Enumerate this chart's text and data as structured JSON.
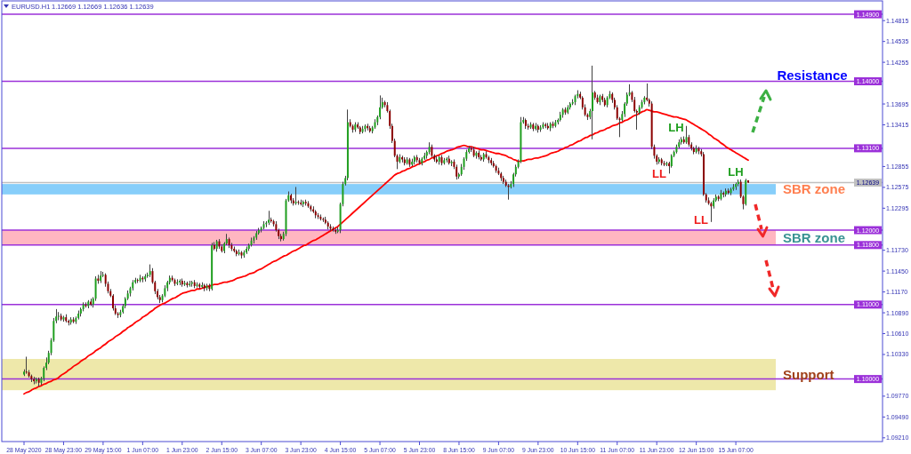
{
  "chart_data": {
    "type": "candlestick",
    "title": "EURUSD.H1",
    "subtitle": "1.12669 1.12669 1.12636 1.12639",
    "categories": [
      "28 May 2020",
      null,
      null,
      null,
      null,
      null,
      null,
      null,
      null,
      null,
      null,
      null,
      null,
      null,
      null,
      null,
      "28 May 23:00",
      null,
      null,
      null,
      null,
      null,
      null,
      null,
      null,
      null,
      null,
      null,
      null,
      null,
      null,
      null,
      "29 May 15:00",
      null,
      null,
      null,
      null,
      null,
      null,
      null,
      null,
      null,
      null,
      null,
      null,
      null,
      null,
      null,
      "1 Jun 07:00",
      null,
      null,
      null,
      null,
      null,
      null,
      null,
      null,
      null,
      null,
      null,
      null,
      null,
      null,
      null,
      "1 Jun 23:00",
      null,
      null,
      null,
      null,
      null,
      null,
      null,
      null,
      null,
      null,
      null,
      null,
      null,
      null,
      null,
      "2 Jun 15:00",
      null,
      null,
      null,
      null,
      null,
      null,
      null,
      null,
      null,
      null,
      null,
      null,
      null,
      null,
      null,
      "3 Jun 07:00",
      null,
      null,
      null,
      null,
      null,
      null,
      null,
      null,
      null,
      null,
      null,
      null,
      null,
      null,
      null,
      "3 Jun 23:00",
      null,
      null,
      null,
      null,
      null,
      null,
      null,
      null,
      null,
      null,
      null,
      null,
      null,
      null,
      null,
      "4 Jun 15:00",
      null,
      null,
      null,
      null,
      null,
      null,
      null,
      null,
      null,
      null,
      null,
      null,
      null,
      null,
      null,
      "5 Jun 07:00",
      null,
      null,
      null,
      null,
      null,
      null,
      null,
      null,
      null,
      null,
      null,
      null,
      null,
      null,
      null,
      "5 Jun 23:00",
      null,
      null,
      null,
      null,
      null,
      null,
      null,
      null,
      null,
      null,
      null,
      null,
      null,
      null,
      null,
      "8 Jun 15:00",
      null,
      null,
      null,
      null,
      null,
      null,
      null,
      null,
      null,
      null,
      null,
      null,
      null,
      null,
      null,
      "9 Jun 07:00",
      null,
      null,
      null,
      null,
      null,
      null,
      null,
      null,
      null,
      null,
      null,
      null,
      null,
      null,
      null,
      "9 Jun 23:00",
      null,
      null,
      null,
      null,
      null,
      null,
      null,
      null,
      null,
      null,
      null,
      null,
      null,
      null,
      null,
      "10 Jun 15:00",
      null,
      null,
      null,
      null,
      null,
      null,
      null,
      null,
      null,
      null,
      null,
      null,
      null,
      null,
      null,
      "11 Jun 07:00",
      null,
      null,
      null,
      null,
      null,
      null,
      null,
      null,
      null,
      null,
      null,
      null,
      null,
      null,
      null,
      "11 Jun 23:00",
      null,
      null,
      null,
      null,
      null,
      null,
      null,
      null,
      null,
      null,
      null,
      null,
      null,
      null,
      null,
      "12 Jun 15:00",
      null,
      null,
      null,
      null,
      null,
      null,
      null,
      null,
      null,
      null,
      null,
      null,
      null,
      null,
      null,
      "15 Jun 07:00",
      null,
      null,
      null,
      null,
      null
    ],
    "ohlc": [
      [
        1.1006,
        1.1013,
        1.1004,
        1.101
      ],
      [
        1.101,
        1.103,
        1.1007,
        1.1009
      ],
      [
        1.1009,
        1.1012,
        1.1002,
        1.1004
      ],
      [
        1.1004,
        1.1006,
        1.0996,
        1.1
      ],
      [
        1.1,
        1.1003,
        1.0993,
        1.0997
      ],
      [
        1.0997,
        1.1002,
        1.0994,
        1.1
      ],
      [
        1.1,
        1.1002,
        1.099,
        1.0995
      ],
      [
        1.0995,
        1.1003,
        1.0992,
        1.1001
      ],
      [
        1.1001,
        1.1017,
        1.0997,
        1.1015
      ],
      [
        1.1015,
        1.1029,
        1.1012,
        1.1022
      ],
      [
        1.1022,
        1.1038,
        1.102,
        1.1035
      ],
      [
        1.1035,
        1.1055,
        1.1032,
        1.1052
      ],
      [
        1.1052,
        1.1082,
        1.105,
        1.1078
      ],
      [
        1.1078,
        1.1094,
        1.1075,
        1.1084
      ],
      [
        1.1084,
        1.109,
        1.1079,
        1.1085
      ],
      [
        1.1085,
        1.1088,
        1.1078,
        1.108
      ],
      [
        1.108,
        1.1085,
        1.1077,
        1.1083
      ],
      [
        1.1083,
        1.1087,
        1.1076,
        1.1078
      ],
      [
        1.1078,
        1.108,
        1.1072,
        1.1076
      ],
      [
        1.1076,
        1.1083,
        1.1073,
        1.108
      ],
      [
        1.108,
        1.1083,
        1.1075,
        1.1077
      ],
      [
        1.1077,
        1.1084,
        1.1074,
        1.1082
      ],
      [
        1.1082,
        1.1092,
        1.108,
        1.1088
      ],
      [
        1.1088,
        1.1096,
        1.1084,
        1.1094
      ],
      [
        1.1094,
        1.1103,
        1.1091,
        1.11
      ],
      [
        1.11,
        1.1103,
        1.1096,
        1.1098
      ],
      [
        1.1098,
        1.1106,
        1.1095,
        1.1104
      ],
      [
        1.1104,
        1.1108,
        1.1098,
        1.11
      ],
      [
        1.11,
        1.111,
        1.1096,
        1.1108
      ],
      [
        1.1108,
        1.1138,
        1.1105,
        1.1135
      ],
      [
        1.1135,
        1.114,
        1.1128,
        1.1132
      ],
      [
        1.1132,
        1.1145,
        1.1129,
        1.1139
      ],
      [
        1.1139,
        1.1144,
        1.1137,
        1.114
      ],
      [
        1.114,
        1.1142,
        1.1124,
        1.1128
      ],
      [
        1.1128,
        1.1131,
        1.1115,
        1.1118
      ],
      [
        1.1118,
        1.1121,
        1.111,
        1.1112
      ],
      [
        1.1112,
        1.1114,
        1.1092,
        1.1095
      ],
      [
        1.1095,
        1.1099,
        1.1086,
        1.1088
      ],
      [
        1.1088,
        1.109,
        1.1082,
        1.1086
      ],
      [
        1.1086,
        1.1093,
        1.1083,
        1.109
      ],
      [
        1.109,
        1.1101,
        1.1088,
        1.1098
      ],
      [
        1.1098,
        1.111,
        1.1095,
        1.1108
      ],
      [
        1.1108,
        1.1119,
        1.1106,
        1.1115
      ],
      [
        1.1115,
        1.1124,
        1.1111,
        1.1122
      ],
      [
        1.1122,
        1.1133,
        1.1119,
        1.113
      ],
      [
        1.113,
        1.1136,
        1.1128,
        1.1133
      ],
      [
        1.1133,
        1.1135,
        1.1129,
        1.1132
      ],
      [
        1.1132,
        1.114,
        1.113,
        1.1136
      ],
      [
        1.1136,
        1.1138,
        1.113,
        1.1134
      ],
      [
        1.1134,
        1.1141,
        1.1131,
        1.1138
      ],
      [
        1.1138,
        1.1143,
        1.1136,
        1.114
      ],
      [
        1.114,
        1.1154,
        1.1137,
        1.1145
      ],
      [
        1.1145,
        1.1149,
        1.1128,
        1.113
      ],
      [
        1.113,
        1.1132,
        1.1114,
        1.1118
      ],
      [
        1.1118,
        1.1121,
        1.1107,
        1.111
      ],
      [
        1.111,
        1.1113,
        1.1102,
        1.1106
      ],
      [
        1.1106,
        1.1114,
        1.1103,
        1.1112
      ],
      [
        1.1112,
        1.1126,
        1.111,
        1.1122
      ],
      [
        1.1122,
        1.1132,
        1.1118,
        1.113
      ],
      [
        1.113,
        1.1139,
        1.1127,
        1.1136
      ],
      [
        1.1136,
        1.1139,
        1.1131,
        1.1133
      ],
      [
        1.1133,
        1.1135,
        1.1125,
        1.1128
      ],
      [
        1.1128,
        1.1134,
        1.1126,
        1.113
      ],
      [
        1.113,
        1.1134,
        1.1126,
        1.1132
      ],
      [
        1.1132,
        1.1135,
        1.1124,
        1.1127
      ],
      [
        1.1127,
        1.1132,
        1.1125,
        1.1129
      ],
      [
        1.1129,
        1.1131,
        1.1123,
        1.1126
      ],
      [
        1.1126,
        1.1132,
        1.1124,
        1.1128
      ],
      [
        1.1128,
        1.1132,
        1.1124,
        1.113
      ],
      [
        1.113,
        1.1133,
        1.1122,
        1.1125
      ],
      [
        1.1125,
        1.113,
        1.1123,
        1.1127
      ],
      [
        1.1127,
        1.1129,
        1.1121,
        1.1124
      ],
      [
        1.1124,
        1.113,
        1.1122,
        1.1126
      ],
      [
        1.1126,
        1.1128,
        1.1118,
        1.1122
      ],
      [
        1.1122,
        1.1128,
        1.1119,
        1.1125
      ],
      [
        1.1125,
        1.1128,
        1.1118,
        1.1121
      ],
      [
        1.1121,
        1.1183,
        1.1119,
        1.118
      ],
      [
        1.118,
        1.1184,
        1.1173,
        1.1175
      ],
      [
        1.1175,
        1.1187,
        1.1171,
        1.1185
      ],
      [
        1.1185,
        1.1188,
        1.1175,
        1.1178
      ],
      [
        1.1178,
        1.1181,
        1.117,
        1.1172
      ],
      [
        1.1172,
        1.1184,
        1.1169,
        1.1182
      ],
      [
        1.1182,
        1.1195,
        1.118,
        1.1188
      ],
      [
        1.1188,
        1.119,
        1.1176,
        1.118
      ],
      [
        1.118,
        1.1183,
        1.1172,
        1.1175
      ],
      [
        1.1175,
        1.1178,
        1.117,
        1.1172
      ],
      [
        1.1172,
        1.1174,
        1.1165,
        1.1168
      ],
      [
        1.1168,
        1.1174,
        1.1166,
        1.117
      ],
      [
        1.117,
        1.1172,
        1.1162,
        1.1166
      ],
      [
        1.1166,
        1.1173,
        1.1163,
        1.117
      ],
      [
        1.117,
        1.1178,
        1.1168,
        1.1175
      ],
      [
        1.1175,
        1.1182,
        1.1172,
        1.118
      ],
      [
        1.118,
        1.119,
        1.1178,
        1.1186
      ],
      [
        1.1186,
        1.1192,
        1.1182,
        1.119
      ],
      [
        1.119,
        1.1199,
        1.1187,
        1.1196
      ],
      [
        1.1196,
        1.1203,
        1.1194,
        1.12
      ],
      [
        1.12,
        1.1205,
        1.1197,
        1.1203
      ],
      [
        1.1203,
        1.1212,
        1.1201,
        1.1208
      ],
      [
        1.1208,
        1.1212,
        1.1204,
        1.121
      ],
      [
        1.121,
        1.1226,
        1.1207,
        1.1214
      ],
      [
        1.1214,
        1.1217,
        1.121,
        1.1212
      ],
      [
        1.1212,
        1.1214,
        1.1205,
        1.1208
      ],
      [
        1.1208,
        1.1212,
        1.1198,
        1.12
      ],
      [
        1.12,
        1.1202,
        1.1188,
        1.1192
      ],
      [
        1.1192,
        1.1195,
        1.1185,
        1.1188
      ],
      [
        1.1188,
        1.1198,
        1.1186,
        1.1195
      ],
      [
        1.1195,
        1.1242,
        1.1192,
        1.124
      ],
      [
        1.124,
        1.1252,
        1.1238,
        1.1247
      ],
      [
        1.1247,
        1.1249,
        1.1236,
        1.124
      ],
      [
        1.124,
        1.1243,
        1.1233,
        1.1236
      ],
      [
        1.1236,
        1.1258,
        1.1234,
        1.1238
      ],
      [
        1.1238,
        1.124,
        1.1234,
        1.1237
      ],
      [
        1.1237,
        1.1241,
        1.1233,
        1.1235
      ],
      [
        1.1235,
        1.124,
        1.1231,
        1.1238
      ],
      [
        1.1238,
        1.1241,
        1.1233,
        1.1236
      ],
      [
        1.1236,
        1.1239,
        1.123,
        1.1232
      ],
      [
        1.1232,
        1.1234,
        1.1225,
        1.1228
      ],
      [
        1.1228,
        1.1232,
        1.1223,
        1.1225
      ],
      [
        1.1225,
        1.1227,
        1.1216,
        1.122
      ],
      [
        1.122,
        1.1223,
        1.1215,
        1.1218
      ],
      [
        1.1218,
        1.1221,
        1.1213,
        1.1215
      ],
      [
        1.1215,
        1.1217,
        1.1211,
        1.1214
      ],
      [
        1.1214,
        1.1218,
        1.1208,
        1.121
      ],
      [
        1.121,
        1.1212,
        1.1201,
        1.1205
      ],
      [
        1.1205,
        1.1208,
        1.1199,
        1.1202
      ],
      [
        1.1202,
        1.1205,
        1.1198,
        1.12
      ],
      [
        1.12,
        1.1202,
        1.1195,
        1.1198
      ],
      [
        1.1198,
        1.1204,
        1.1196,
        1.12
      ],
      [
        1.12,
        1.1237,
        1.1196,
        1.1235
      ],
      [
        1.1235,
        1.1265,
        1.1232,
        1.1262
      ],
      [
        1.1262,
        1.1273,
        1.126,
        1.127
      ],
      [
        1.127,
        1.1362,
        1.1267,
        1.1345
      ],
      [
        1.1345,
        1.1349,
        1.1338,
        1.134
      ],
      [
        1.134,
        1.1342,
        1.1331,
        1.1335
      ],
      [
        1.1335,
        1.1345,
        1.1332,
        1.1342
      ],
      [
        1.1342,
        1.1345,
        1.1336,
        1.1338
      ],
      [
        1.1338,
        1.134,
        1.1329,
        1.1332
      ],
      [
        1.1332,
        1.134,
        1.133,
        1.1336
      ],
      [
        1.1336,
        1.1342,
        1.1332,
        1.134
      ],
      [
        1.134,
        1.1343,
        1.1334,
        1.1337
      ],
      [
        1.1337,
        1.134,
        1.1331,
        1.1333
      ],
      [
        1.1333,
        1.134,
        1.133,
        1.1338
      ],
      [
        1.1338,
        1.1349,
        1.1336,
        1.1345
      ],
      [
        1.1345,
        1.1354,
        1.1341,
        1.1352
      ],
      [
        1.1352,
        1.1381,
        1.1349,
        1.1365
      ],
      [
        1.1365,
        1.1378,
        1.1363,
        1.1372
      ],
      [
        1.1372,
        1.1374,
        1.1365,
        1.1368
      ],
      [
        1.1368,
        1.1372,
        1.1358,
        1.136
      ],
      [
        1.136,
        1.1362,
        1.1336,
        1.134
      ],
      [
        1.134,
        1.1343,
        1.1317,
        1.132
      ],
      [
        1.132,
        1.1323,
        1.1298,
        1.13
      ],
      [
        1.13,
        1.1302,
        1.1282,
        1.1292
      ],
      [
        1.1292,
        1.1302,
        1.129,
        1.1298
      ],
      [
        1.1298,
        1.13,
        1.1291,
        1.1295
      ],
      [
        1.1295,
        1.1298,
        1.1287,
        1.129
      ],
      [
        1.129,
        1.1298,
        1.1288,
        1.1295
      ],
      [
        1.1295,
        1.1297,
        1.1285,
        1.1288
      ],
      [
        1.1288,
        1.1296,
        1.1286,
        1.1292
      ],
      [
        1.1292,
        1.13,
        1.1288,
        1.1298
      ],
      [
        1.1298,
        1.1301,
        1.1291,
        1.1294
      ],
      [
        1.1294,
        1.1297,
        1.1288,
        1.129
      ],
      [
        1.129,
        1.1298,
        1.1287,
        1.1296
      ],
      [
        1.1296,
        1.1304,
        1.1294,
        1.13
      ],
      [
        1.13,
        1.1307,
        1.1296,
        1.1305
      ],
      [
        1.1305,
        1.1318,
        1.1302,
        1.1312
      ],
      [
        1.1312,
        1.1315,
        1.1298,
        1.13
      ],
      [
        1.13,
        1.1302,
        1.1292,
        1.1295
      ],
      [
        1.1295,
        1.1299,
        1.129,
        1.1292
      ],
      [
        1.1292,
        1.13,
        1.1288,
        1.1298
      ],
      [
        1.1298,
        1.1301,
        1.1287,
        1.129
      ],
      [
        1.129,
        1.1297,
        1.1288,
        1.1294
      ],
      [
        1.1294,
        1.1298,
        1.1291,
        1.1296
      ],
      [
        1.1296,
        1.13,
        1.1288,
        1.129
      ],
      [
        1.129,
        1.1294,
        1.1286,
        1.1292
      ],
      [
        1.1292,
        1.1295,
        1.1282,
        1.1285
      ],
      [
        1.1285,
        1.1288,
        1.1268,
        1.1272
      ],
      [
        1.1272,
        1.1277,
        1.1269,
        1.1275
      ],
      [
        1.1275,
        1.1289,
        1.1273,
        1.1285
      ],
      [
        1.1285,
        1.1298,
        1.1281,
        1.1296
      ],
      [
        1.1296,
        1.1308,
        1.1293,
        1.1305
      ],
      [
        1.1305,
        1.1313,
        1.1303,
        1.131
      ],
      [
        1.131,
        1.1312,
        1.1305,
        1.1308
      ],
      [
        1.1308,
        1.1312,
        1.1298,
        1.13
      ],
      [
        1.13,
        1.1306,
        1.1296,
        1.1304
      ],
      [
        1.1304,
        1.1307,
        1.1295,
        1.1298
      ],
      [
        1.1298,
        1.1301,
        1.1293,
        1.1295
      ],
      [
        1.1295,
        1.1304,
        1.1292,
        1.1302
      ],
      [
        1.1302,
        1.1306,
        1.1296,
        1.1298
      ],
      [
        1.1298,
        1.13,
        1.129,
        1.1294
      ],
      [
        1.1294,
        1.1297,
        1.1287,
        1.129
      ],
      [
        1.129,
        1.1293,
        1.1284,
        1.1286
      ],
      [
        1.1286,
        1.1288,
        1.1277,
        1.128
      ],
      [
        1.128,
        1.1284,
        1.1274,
        1.1276
      ],
      [
        1.1276,
        1.1278,
        1.1266,
        1.127
      ],
      [
        1.127,
        1.1273,
        1.1262,
        1.1265
      ],
      [
        1.1265,
        1.1268,
        1.1258,
        1.126
      ],
      [
        1.126,
        1.1262,
        1.1241,
        1.1258
      ],
      [
        1.1258,
        1.1266,
        1.1256,
        1.1262
      ],
      [
        1.1262,
        1.1277,
        1.1258,
        1.1275
      ],
      [
        1.1275,
        1.1288,
        1.1272,
        1.1285
      ],
      [
        1.1285,
        1.1295,
        1.1283,
        1.1292
      ],
      [
        1.1292,
        1.1352,
        1.129,
        1.1345
      ],
      [
        1.1345,
        1.1352,
        1.1343,
        1.1348
      ],
      [
        1.1348,
        1.135,
        1.1336,
        1.134
      ],
      [
        1.134,
        1.1343,
        1.1335,
        1.1338
      ],
      [
        1.1338,
        1.1345,
        1.1336,
        1.1342
      ],
      [
        1.1342,
        1.1344,
        1.1333,
        1.1336
      ],
      [
        1.1336,
        1.1344,
        1.1334,
        1.134
      ],
      [
        1.134,
        1.1342,
        1.1331,
        1.1335
      ],
      [
        1.1335,
        1.1341,
        1.1332,
        1.1338
      ],
      [
        1.1338,
        1.1345,
        1.1336,
        1.1342
      ],
      [
        1.1342,
        1.1344,
        1.1337,
        1.134
      ],
      [
        1.134,
        1.1344,
        1.1335,
        1.1337
      ],
      [
        1.1337,
        1.1345,
        1.1333,
        1.1343
      ],
      [
        1.1343,
        1.1346,
        1.1337,
        1.134
      ],
      [
        1.134,
        1.1348,
        1.1338,
        1.1345
      ],
      [
        1.1345,
        1.135,
        1.1342,
        1.1348
      ],
      [
        1.1348,
        1.1359,
        1.1346,
        1.1355
      ],
      [
        1.1355,
        1.1364,
        1.1351,
        1.1362
      ],
      [
        1.1362,
        1.1365,
        1.1355,
        1.1358
      ],
      [
        1.1358,
        1.1368,
        1.1356,
        1.1365
      ],
      [
        1.1365,
        1.1372,
        1.1362,
        1.137
      ],
      [
        1.137,
        1.1376,
        1.1368,
        1.1372
      ],
      [
        1.1372,
        1.1382,
        1.1368,
        1.138
      ],
      [
        1.138,
        1.1388,
        1.1377,
        1.1383
      ],
      [
        1.1383,
        1.1386,
        1.1376,
        1.1378
      ],
      [
        1.1378,
        1.138,
        1.1362,
        1.1365
      ],
      [
        1.1365,
        1.1369,
        1.1353,
        1.1355
      ],
      [
        1.1355,
        1.1357,
        1.1348,
        1.1352
      ],
      [
        1.1352,
        1.1363,
        1.1349,
        1.136
      ],
      [
        1.136,
        1.1421,
        1.1322,
        1.1385
      ],
      [
        1.1385,
        1.1387,
        1.1375,
        1.1378
      ],
      [
        1.1378,
        1.1382,
        1.137,
        1.1372
      ],
      [
        1.1372,
        1.1382,
        1.1368,
        1.138
      ],
      [
        1.138,
        1.1383,
        1.1372,
        1.1375
      ],
      [
        1.1375,
        1.1378,
        1.1366,
        1.1368
      ],
      [
        1.1368,
        1.138,
        1.1365,
        1.1378
      ],
      [
        1.1378,
        1.1387,
        1.1376,
        1.1383
      ],
      [
        1.1383,
        1.1385,
        1.1371,
        1.1375
      ],
      [
        1.1375,
        1.1378,
        1.1362,
        1.1365
      ],
      [
        1.1365,
        1.1368,
        1.1348,
        1.135
      ],
      [
        1.135,
        1.1352,
        1.1325,
        1.1348
      ],
      [
        1.1348,
        1.136,
        1.1346,
        1.1356
      ],
      [
        1.1356,
        1.1372,
        1.1352,
        1.137
      ],
      [
        1.137,
        1.1385,
        1.1367,
        1.1382
      ],
      [
        1.1382,
        1.1396,
        1.138,
        1.1385
      ],
      [
        1.1385,
        1.1387,
        1.1372,
        1.1375
      ],
      [
        1.1375,
        1.1379,
        1.1358,
        1.136
      ],
      [
        1.136,
        1.1362,
        1.1335,
        1.1358
      ],
      [
        1.1358,
        1.1368,
        1.1355,
        1.1365
      ],
      [
        1.1365,
        1.1375,
        1.1363,
        1.1372
      ],
      [
        1.1372,
        1.138,
        1.1369,
        1.1378
      ],
      [
        1.1378,
        1.1397,
        1.1373,
        1.1375
      ],
      [
        1.1375,
        1.1377,
        1.1366,
        1.137
      ],
      [
        1.137,
        1.1373,
        1.1309,
        1.1312
      ],
      [
        1.1312,
        1.1315,
        1.1296,
        1.13
      ],
      [
        1.13,
        1.1302,
        1.1288,
        1.1292
      ],
      [
        1.1292,
        1.1298,
        1.1289,
        1.1295
      ],
      [
        1.1295,
        1.1297,
        1.1287,
        1.129
      ],
      [
        1.129,
        1.1293,
        1.1286,
        1.1288
      ],
      [
        1.1288,
        1.1292,
        1.1286,
        1.129
      ],
      [
        1.129,
        1.1292,
        1.1276,
        1.1286
      ],
      [
        1.1286,
        1.1302,
        1.1284,
        1.13
      ],
      [
        1.13,
        1.1307,
        1.1298,
        1.1305
      ],
      [
        1.1305,
        1.1315,
        1.1303,
        1.1312
      ],
      [
        1.1312,
        1.1322,
        1.131,
        1.1318
      ],
      [
        1.1318,
        1.1325,
        1.1315,
        1.1322
      ],
      [
        1.1322,
        1.1326,
        1.1316,
        1.1318
      ],
      [
        1.1318,
        1.134,
        1.1316,
        1.1325
      ],
      [
        1.1325,
        1.1328,
        1.1312,
        1.1315
      ],
      [
        1.1315,
        1.1318,
        1.1307,
        1.131
      ],
      [
        1.131,
        1.1312,
        1.1302,
        1.1305
      ],
      [
        1.1305,
        1.1314,
        1.1303,
        1.131
      ],
      [
        1.131,
        1.1312,
        1.1302,
        1.1306
      ],
      [
        1.1306,
        1.1309,
        1.1299,
        1.1302
      ],
      [
        1.1302,
        1.1305,
        1.1246,
        1.1248
      ],
      [
        1.1248,
        1.125,
        1.1237,
        1.124
      ],
      [
        1.124,
        1.1244,
        1.1234,
        1.1236
      ],
      [
        1.1236,
        1.1238,
        1.1211,
        1.1232
      ],
      [
        1.1232,
        1.1243,
        1.1229,
        1.124
      ],
      [
        1.124,
        1.1248,
        1.1238,
        1.1245
      ],
      [
        1.1245,
        1.1247,
        1.1239,
        1.1242
      ],
      [
        1.1242,
        1.1254,
        1.124,
        1.125
      ],
      [
        1.125,
        1.1252,
        1.1244,
        1.1248
      ],
      [
        1.1248,
        1.1256,
        1.1245,
        1.1253
      ],
      [
        1.1253,
        1.1256,
        1.1248,
        1.125
      ],
      [
        1.125,
        1.1257,
        1.1247,
        1.1255
      ],
      [
        1.1255,
        1.1262,
        1.1253,
        1.1258
      ],
      [
        1.1258,
        1.1264,
        1.1254,
        1.1262
      ],
      [
        1.1262,
        1.1268,
        1.1259,
        1.1265
      ],
      [
        1.1265,
        1.1268,
        1.1243,
        1.1245
      ],
      [
        1.1245,
        1.1247,
        1.1228,
        1.1235
      ],
      [
        1.1235,
        1.1269,
        1.1233,
        1.1267
      ],
      [
        1.12669,
        1.12669,
        1.12636,
        1.12639
      ]
    ],
    "series": [
      {
        "type": "line",
        "color": "#ff0000",
        "values": [
          1.098,
          1.0982,
          1.0983,
          1.0985,
          1.0987,
          1.0988,
          1.099,
          1.0991,
          1.0993,
          1.0994,
          1.0996,
          1.0997,
          1.0999,
          1.1,
          1.1002,
          1.1005,
          1.1007,
          1.1009,
          1.1012,
          1.1014,
          1.1017,
          1.1019,
          1.1021,
          1.1024,
          1.1026,
          1.1028,
          1.1031,
          1.1033,
          1.1035,
          1.1038,
          1.104,
          1.1042,
          1.1045,
          1.1047,
          1.105,
          1.1052,
          1.1054,
          1.1057,
          1.1059,
          1.1061,
          1.1064,
          1.1066,
          1.1069,
          1.1071,
          1.1073,
          1.1076,
          1.1078,
          1.108,
          1.1083,
          1.1085,
          1.1087,
          1.109,
          1.1092,
          1.1095,
          1.1097,
          1.1099,
          1.1101,
          1.1102,
          1.1104,
          1.1106,
          1.1108,
          1.1109,
          1.1111,
          1.1113,
          1.1115,
          1.1116,
          1.1117,
          1.1118,
          1.1119,
          1.1119,
          1.1121,
          1.1121,
          1.1122,
          1.1123,
          1.1124,
          1.1125,
          1.1126,
          1.1127,
          1.1127,
          1.1128,
          1.1129,
          1.113,
          1.113,
          1.1131,
          1.1132,
          1.1133,
          1.1135,
          1.1136,
          1.1137,
          1.1138,
          1.1139,
          1.1141,
          1.1142,
          1.1143,
          1.1145,
          1.1147,
          1.1148,
          1.115,
          1.1152,
          1.1154,
          1.1156,
          1.1158,
          1.1159,
          1.1161,
          1.1163,
          1.1165,
          1.1166,
          1.1168,
          1.117,
          1.1172,
          1.1173,
          1.1175,
          1.1177,
          1.1179,
          1.118,
          1.1182,
          1.1184,
          1.1186,
          1.1187,
          1.1189,
          1.1191,
          1.1193,
          1.1195,
          1.1197,
          1.1199,
          1.1201,
          1.1203,
          1.1205,
          1.1208,
          1.1211,
          1.1214,
          1.1217,
          1.122,
          1.1223,
          1.1226,
          1.1229,
          1.1232,
          1.1235,
          1.1238,
          1.1241,
          1.1244,
          1.1247,
          1.125,
          1.1253,
          1.1256,
          1.1259,
          1.1262,
          1.1265,
          1.1268,
          1.1271,
          1.1274,
          1.1276,
          1.1277,
          1.1279,
          1.128,
          1.1282,
          1.1283,
          1.1285,
          1.1286,
          1.1288,
          1.1289,
          1.1291,
          1.1292,
          1.1294,
          1.1295,
          1.1297,
          1.1298,
          1.13,
          1.1301,
          1.1303,
          1.1304,
          1.1306,
          1.1307,
          1.1308,
          1.1309,
          1.1311,
          1.1312,
          1.1313,
          1.1314,
          1.1313,
          1.1312,
          1.1312,
          1.1311,
          1.131,
          1.1309,
          1.1308,
          1.1308,
          1.1307,
          1.1306,
          1.1305,
          1.1304,
          1.1303,
          1.1303,
          1.1302,
          1.1301,
          1.13,
          1.1298,
          1.1297,
          1.1295,
          1.1294,
          1.1292,
          1.1293,
          1.1293,
          1.1294,
          1.1295,
          1.1295,
          1.1296,
          1.1297,
          1.1297,
          1.1298,
          1.1299,
          1.13,
          1.1301,
          1.1303,
          1.1304,
          1.1305,
          1.1306,
          1.1308,
          1.1309,
          1.1311,
          1.1312,
          1.1314,
          1.1315,
          1.1317,
          1.1319,
          1.132,
          1.1322,
          1.1324,
          1.1325,
          1.1327,
          1.1328,
          1.133,
          1.1331,
          1.1333,
          1.1334,
          1.1335,
          1.1337,
          1.1338,
          1.134,
          1.1341,
          1.1342,
          1.1344,
          1.1345,
          1.1347,
          1.1348,
          1.135,
          1.1352,
          1.1354,
          1.1355,
          1.1357,
          1.1359,
          1.136,
          1.1362,
          1.1361,
          1.136,
          1.1359,
          1.1359,
          1.1358,
          1.1357,
          1.1356,
          1.1355,
          1.1354,
          1.1353,
          1.1352,
          1.1352,
          1.1351,
          1.135,
          1.1349,
          1.1348,
          1.1346,
          1.1344,
          1.1342,
          1.134,
          1.1338,
          1.1336,
          1.1334,
          1.1332,
          1.1329,
          1.1327,
          1.1324,
          1.1322,
          1.132,
          1.1317,
          1.1315,
          1.1312,
          1.131,
          1.1308,
          1.1306,
          1.1304,
          1.1302,
          1.13,
          1.1298,
          1.1296,
          1.1294
        ]
      }
    ],
    "ylim": [
      1.0916,
      1.1508
    ],
    "yticks": [
      1.14815,
      1.14535,
      1.14255,
      1.13695,
      1.13415,
      1.12855,
      1.12575,
      1.12295,
      {
        "value": 1.1173,
        "label": "1.11730"
      },
      {
        "value": 1.1145,
        "label": "1.11450"
      },
      {
        "value": 1.1117,
        "label": "1.11170"
      },
      {
        "value": 1.1089,
        "label": "1.10890"
      },
      {
        "value": 1.1061,
        "label": "1.10610"
      },
      {
        "value": 1.1033,
        "label": "1.10330"
      },
      {
        "value": 1.0977,
        "label": "1.09770"
      },
      {
        "value": 1.0949,
        "label": "1.09490"
      },
      {
        "value": 1.0921,
        "label": "1.09210"
      }
    ],
    "ref_lines": [
      {
        "axis": "y",
        "value": 1.149,
        "label": "1.14900",
        "color": "#9b30d9"
      },
      {
        "axis": "y",
        "value": 1.14,
        "label": "1.14000",
        "color": "#9b30d9"
      },
      {
        "axis": "y",
        "value": 1.131,
        "label": "1.13100",
        "color": "#9b30d9"
      },
      {
        "axis": "y",
        "value": 1.12639,
        "label": "1.12639",
        "color": "#c0c0c0"
      },
      {
        "axis": "y",
        "value": 1.12,
        "label": "1.12000",
        "color": "#9b30d9"
      },
      {
        "axis": "y",
        "value": 1.118,
        "label": "1.11800",
        "color": "#9b30d9"
      },
      {
        "axis": "y",
        "value": 1.11,
        "label": "1.11000",
        "color": "#9b30d9"
      },
      {
        "axis": "y",
        "value": 1.1,
        "label": "1.10000",
        "color": "#9b30d9"
      }
    ],
    "bands": [
      {
        "axis": "y",
        "from": 1.1248,
        "to": 1.1262,
        "label": "SBR zone",
        "color": "#87cefa"
      },
      {
        "axis": "y",
        "from": 1.118,
        "to": 1.12,
        "label": "SBR zone",
        "color": "#ffb6c1"
      },
      {
        "axis": "y",
        "from": 1.0985,
        "to": 1.1027,
        "label": "Support",
        "color": "#eee8aa"
      }
    ],
    "annotations": [
      "Resistance",
      "LL",
      "LH",
      "LL",
      "LH"
    ]
  }
}
